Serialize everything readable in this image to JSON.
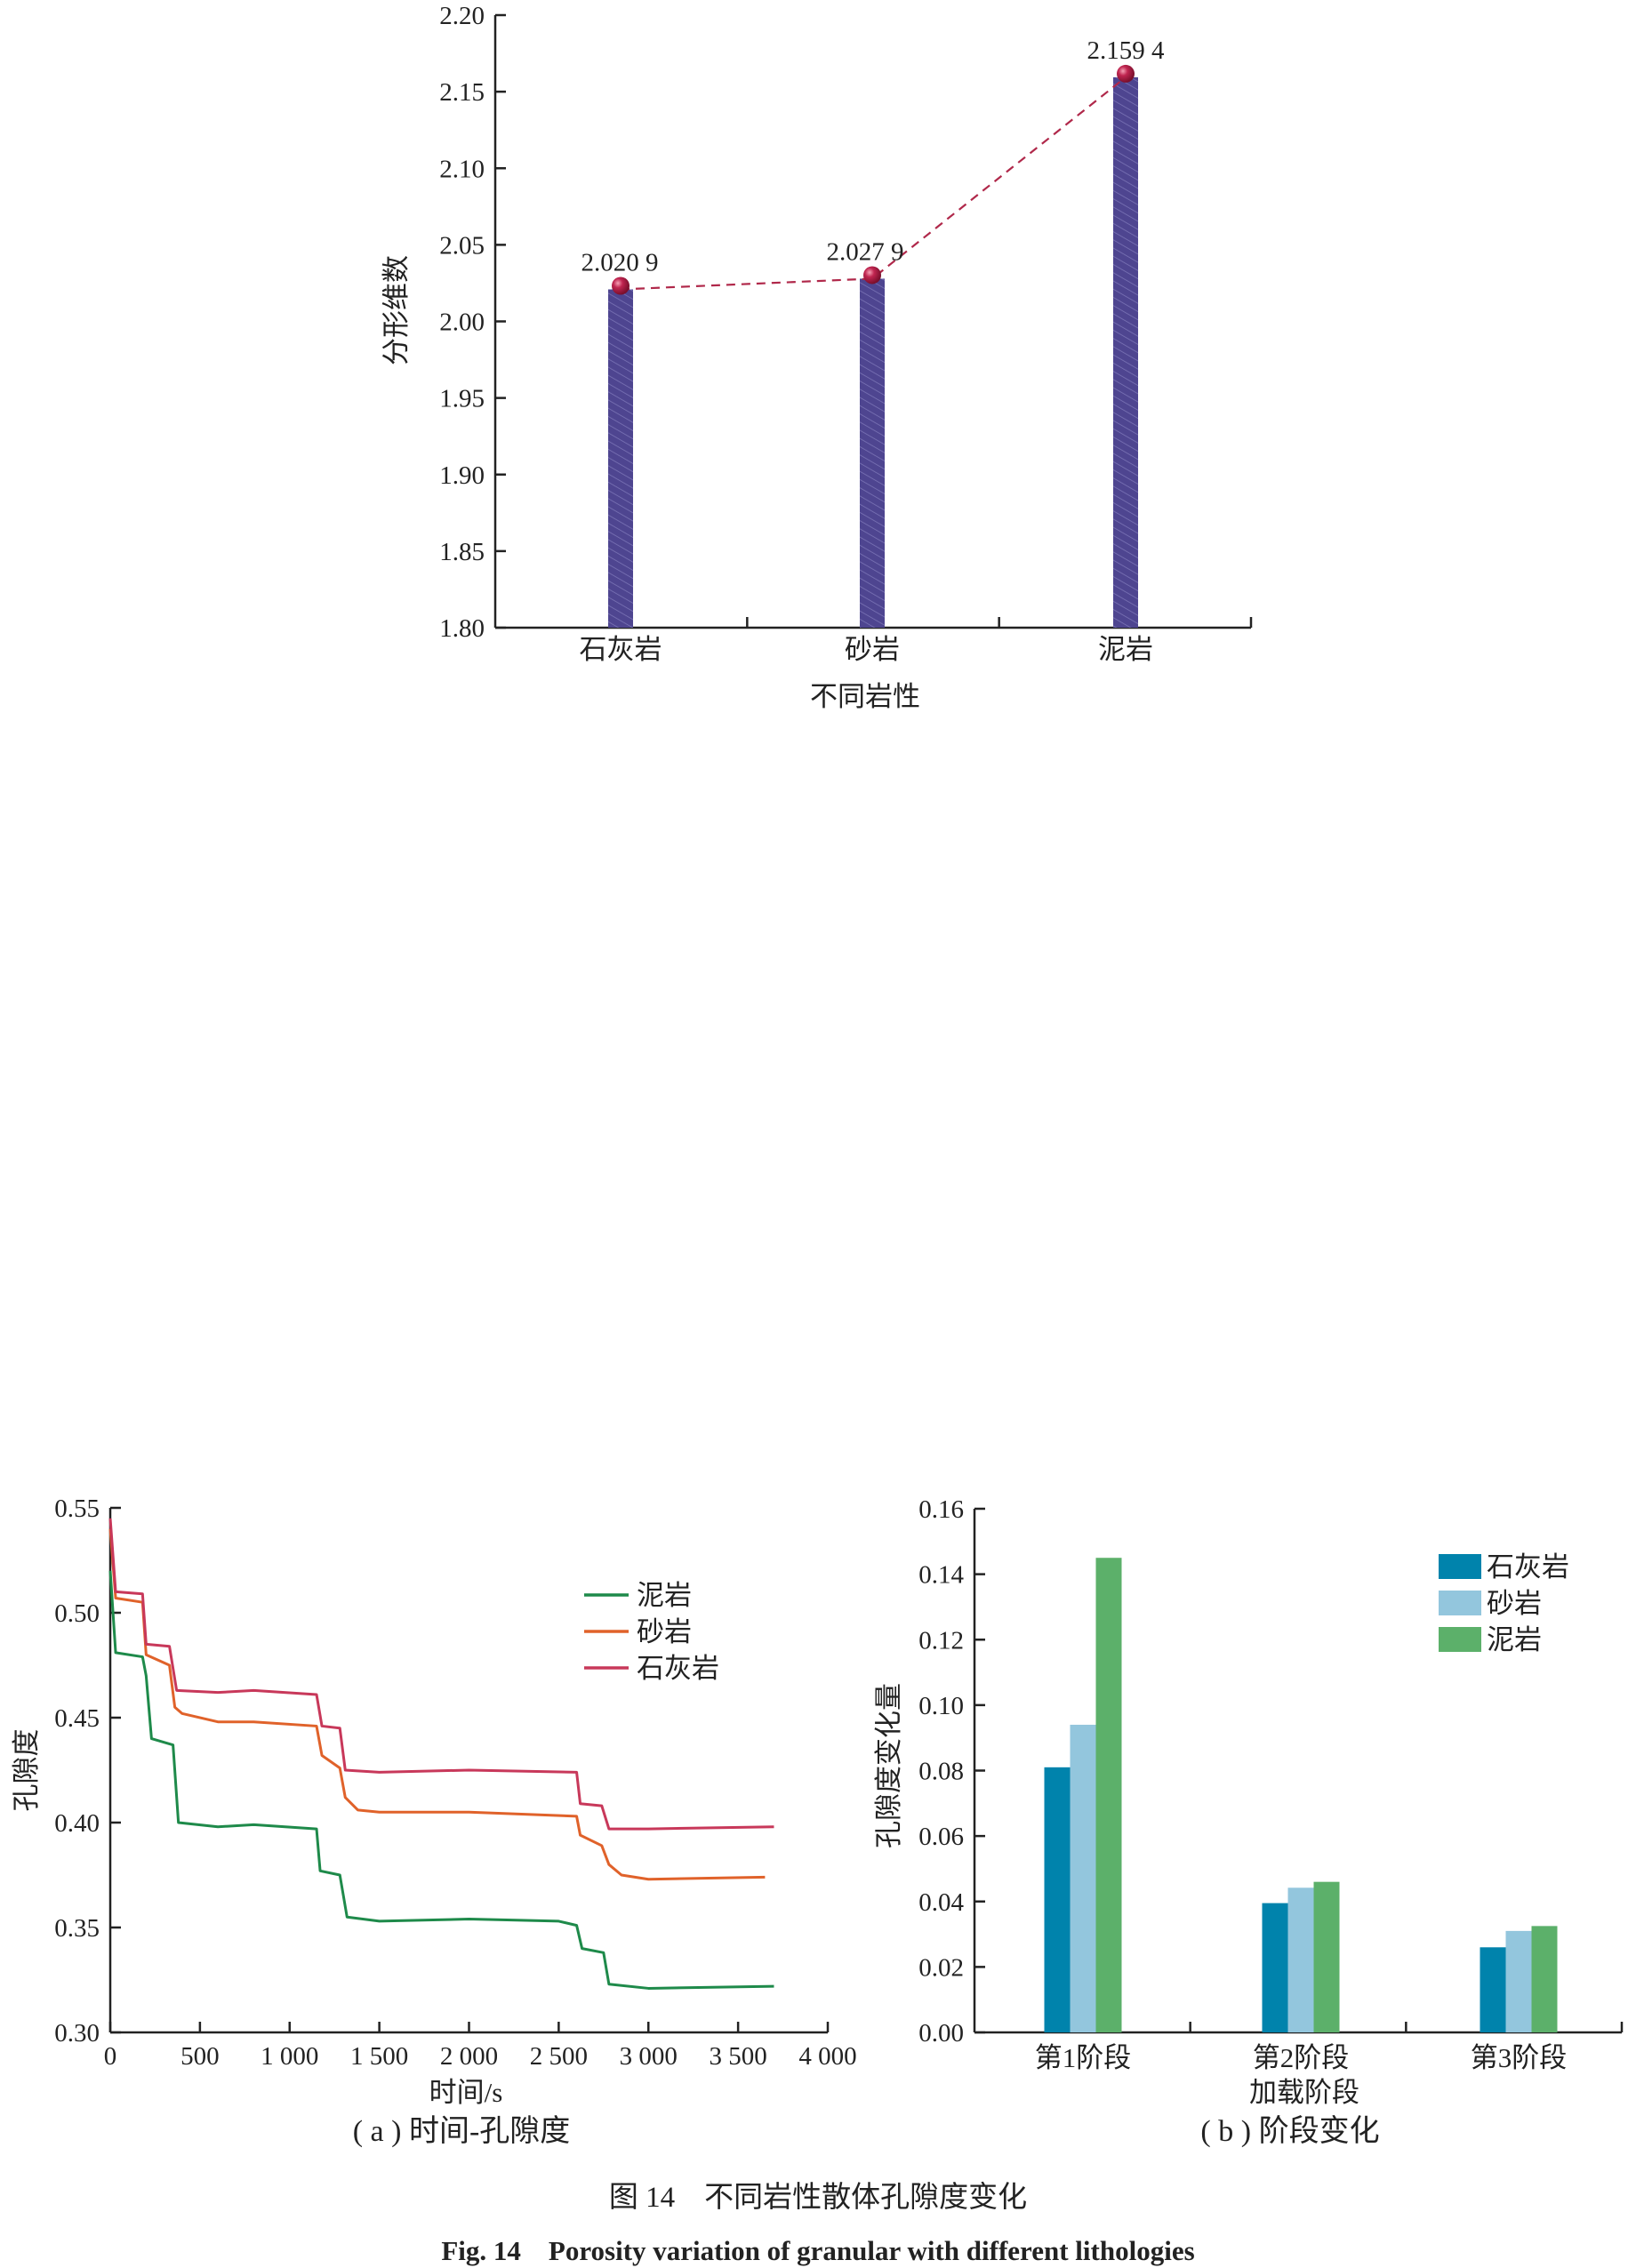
{
  "chart_data": [
    {
      "type": "bar",
      "title": "",
      "xlabel": "不同岩性",
      "ylabel": "分形维数",
      "ylim": [
        1.8,
        2.2
      ],
      "yticks": [
        "1.80",
        "1.85",
        "1.90",
        "1.95",
        "2.00",
        "2.05",
        "2.10",
        "2.15",
        "2.20"
      ],
      "categories": [
        "石灰岩",
        "砂岩",
        "泥岩"
      ],
      "values": [
        2.0209,
        2.0279,
        2.1594
      ],
      "data_labels": [
        "2.020 9",
        "2.027 9",
        "2.159 4"
      ],
      "bar_color": "#4e4590",
      "line_color": "#b0284a",
      "grid": false
    },
    {
      "type": "line",
      "caption": "( a ) 时间-孔隙度",
      "xlabel": "时间/s",
      "ylabel": "孔隙度",
      "xlim": [
        0,
        4000
      ],
      "ylim": [
        0.3,
        0.55
      ],
      "xticks": [
        "0",
        "500",
        "1 000",
        "1 500",
        "2 000",
        "2 500",
        "3 000",
        "3 500",
        "4 000"
      ],
      "yticks": [
        "0.30",
        "0.35",
        "0.40",
        "0.45",
        "0.50",
        "0.55"
      ],
      "legend": "top-right",
      "series": [
        {
          "name": "泥岩",
          "color": "#1e8a4a",
          "x": [
            0,
            30,
            180,
            200,
            230,
            350,
            380,
            600,
            800,
            1150,
            1170,
            1280,
            1320,
            1500,
            2000,
            2500,
            2600,
            2630,
            2750,
            2780,
            3000,
            3700
          ],
          "y": [
            0.52,
            0.481,
            0.479,
            0.47,
            0.44,
            0.437,
            0.4,
            0.398,
            0.399,
            0.397,
            0.377,
            0.375,
            0.355,
            0.353,
            0.354,
            0.353,
            0.351,
            0.34,
            0.338,
            0.323,
            0.321,
            0.322
          ]
        },
        {
          "name": "砂岩",
          "color": "#e0622a",
          "x": [
            0,
            30,
            180,
            200,
            330,
            360,
            400,
            600,
            800,
            1150,
            1180,
            1280,
            1310,
            1380,
            1500,
            2000,
            2600,
            2620,
            2740,
            2780,
            2850,
            3000,
            3650
          ],
          "y": [
            0.54,
            0.507,
            0.505,
            0.48,
            0.475,
            0.455,
            0.452,
            0.448,
            0.448,
            0.446,
            0.432,
            0.426,
            0.412,
            0.406,
            0.405,
            0.405,
            0.403,
            0.394,
            0.389,
            0.38,
            0.375,
            0.373,
            0.374
          ]
        },
        {
          "name": "石灰岩",
          "color": "#c8385a",
          "x": [
            0,
            30,
            180,
            200,
            330,
            370,
            600,
            800,
            1150,
            1180,
            1280,
            1310,
            1500,
            2000,
            2600,
            2620,
            2740,
            2780,
            3000,
            3700
          ],
          "y": [
            0.545,
            0.51,
            0.509,
            0.485,
            0.484,
            0.463,
            0.462,
            0.463,
            0.461,
            0.446,
            0.445,
            0.425,
            0.424,
            0.425,
            0.424,
            0.409,
            0.408,
            0.397,
            0.397,
            0.398
          ]
        }
      ]
    },
    {
      "type": "bar",
      "caption": "( b ) 阶段变化",
      "xlabel": "加载阶段",
      "ylabel": "孔隙度变化量",
      "ylim": [
        0,
        0.16
      ],
      "yticks": [
        "0.00",
        "0.02",
        "0.04",
        "0.06",
        "0.08",
        "0.10",
        "0.12",
        "0.14",
        "0.16"
      ],
      "categories": [
        "第1阶段",
        "第2阶段",
        "第3阶段"
      ],
      "legend": "top-right",
      "series": [
        {
          "name": "石灰岩",
          "color": "#0083ac",
          "values": [
            0.081,
            0.0395,
            0.026
          ]
        },
        {
          "name": "砂岩",
          "color": "#93c6dd",
          "values": [
            0.094,
            0.0442,
            0.031
          ]
        },
        {
          "name": "泥岩",
          "color": "#5cb06a",
          "values": [
            0.145,
            0.046,
            0.0325
          ]
        }
      ]
    }
  ],
  "figure": {
    "caption_cn": "图 14　不同岩性散体孔隙度变化",
    "caption_en": "Fig. 14　Porosity variation of granular with different lithologies"
  }
}
